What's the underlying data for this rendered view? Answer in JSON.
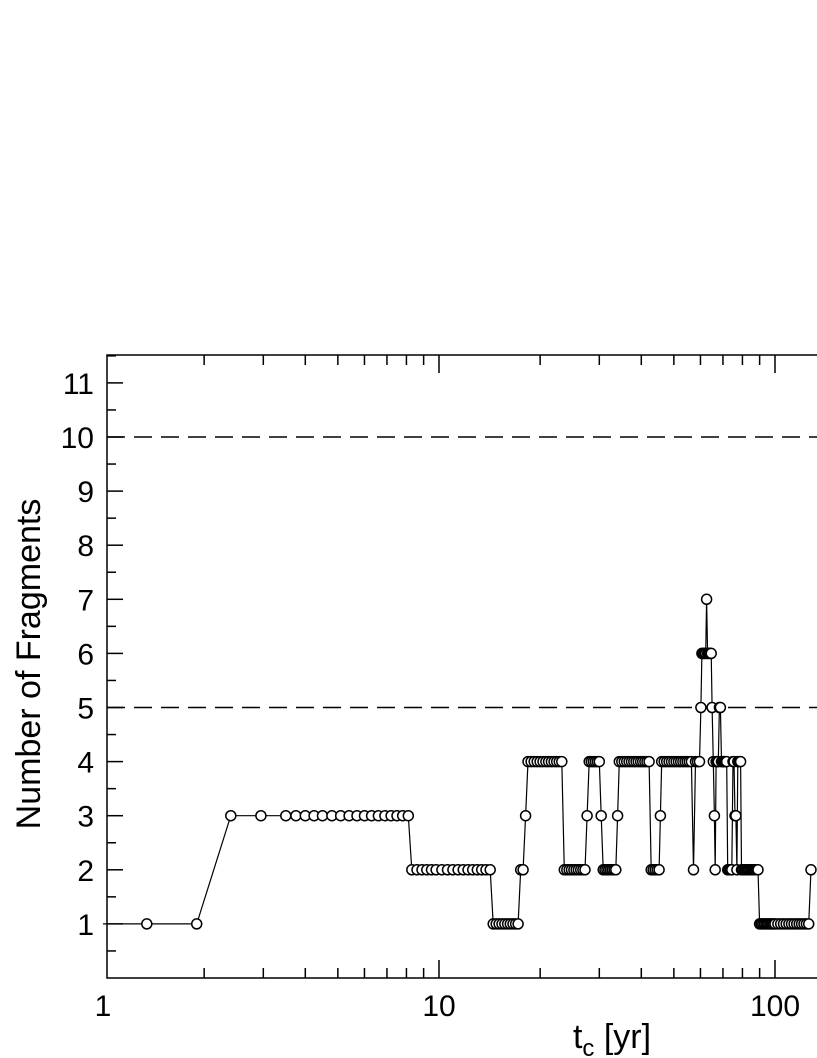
{
  "chart_data": {
    "type": "scatter",
    "title": "",
    "ylabel": "Number of Fragments",
    "xlabel_main": "t",
    "xlabel_sub": "c",
    "xlabel_unit": " [yr]",
    "x_scale": "log",
    "xlim": [
      1,
      130
    ],
    "ylim": [
      0,
      11.5
    ],
    "x_ticks": [
      {
        "value": 1,
        "label": "1"
      },
      {
        "value": 10,
        "label": "10"
      },
      {
        "value": 100,
        "label": "100"
      }
    ],
    "y_ticks": [
      {
        "value": 1,
        "label": "1"
      },
      {
        "value": 2,
        "label": "2"
      },
      {
        "value": 3,
        "label": "3"
      },
      {
        "value": 4,
        "label": "4"
      },
      {
        "value": 5,
        "label": "5"
      },
      {
        "value": 6,
        "label": "6"
      },
      {
        "value": 7,
        "label": "7"
      },
      {
        "value": 8,
        "label": "8"
      },
      {
        "value": 9,
        "label": "9"
      },
      {
        "value": 10,
        "label": "10"
      },
      {
        "value": 11,
        "label": "11"
      }
    ],
    "reference_lines": [
      5,
      10
    ],
    "grid": false,
    "series": [
      {
        "line_start": [
          [
            1.0,
            1
          ]
        ],
        "points": [
          [
            1.35,
            1
          ],
          [
            1.9,
            1
          ],
          [
            2.4,
            3
          ],
          [
            2.95,
            3
          ],
          [
            3.5,
            3
          ],
          [
            3.75,
            3
          ],
          [
            4.0,
            3
          ],
          [
            4.25,
            3
          ],
          [
            4.5,
            3
          ],
          [
            4.8,
            3
          ],
          [
            5.1,
            3
          ],
          [
            5.4,
            3
          ],
          [
            5.7,
            3
          ],
          [
            6.0,
            3
          ],
          [
            6.3,
            3
          ],
          [
            6.6,
            3
          ],
          [
            6.9,
            3
          ],
          [
            7.2,
            3
          ],
          [
            7.5,
            3
          ],
          [
            7.8,
            3
          ],
          [
            8.1,
            3
          ],
          [
            8.3,
            2
          ],
          [
            8.6,
            2
          ],
          [
            8.9,
            2
          ],
          [
            9.2,
            2
          ],
          [
            9.5,
            2
          ],
          [
            9.8,
            2
          ],
          [
            10.2,
            2
          ],
          [
            10.6,
            2
          ],
          [
            11.0,
            2
          ],
          [
            11.4,
            2
          ],
          [
            11.8,
            2
          ],
          [
            12.2,
            2
          ],
          [
            12.6,
            2
          ],
          [
            13.0,
            2
          ],
          [
            13.4,
            2
          ],
          [
            13.8,
            2
          ],
          [
            14.2,
            2
          ],
          [
            14.5,
            1
          ],
          [
            14.8,
            1
          ],
          [
            15.1,
            1
          ],
          [
            15.4,
            1
          ],
          [
            15.7,
            1
          ],
          [
            16.0,
            1
          ],
          [
            16.3,
            1
          ],
          [
            16.6,
            1
          ],
          [
            16.9,
            1
          ],
          [
            17.2,
            1
          ],
          [
            17.5,
            2
          ],
          [
            17.8,
            2
          ],
          [
            18.1,
            3
          ],
          [
            18.4,
            4
          ],
          [
            18.8,
            4
          ],
          [
            19.2,
            4
          ],
          [
            19.6,
            4
          ],
          [
            20.0,
            4
          ],
          [
            20.4,
            4
          ],
          [
            20.8,
            4
          ],
          [
            21.2,
            4
          ],
          [
            21.6,
            4
          ],
          [
            22.0,
            4
          ],
          [
            22.4,
            4
          ],
          [
            22.8,
            4
          ],
          [
            23.2,
            4
          ],
          [
            23.6,
            2
          ],
          [
            24.0,
            2
          ],
          [
            24.4,
            2
          ],
          [
            24.8,
            2
          ],
          [
            25.2,
            2
          ],
          [
            25.6,
            2
          ],
          [
            26.0,
            2
          ],
          [
            26.4,
            2
          ],
          [
            26.8,
            2
          ],
          [
            27.2,
            2
          ],
          [
            27.6,
            3
          ],
          [
            28.0,
            4
          ],
          [
            28.4,
            4
          ],
          [
            28.8,
            4
          ],
          [
            29.2,
            4
          ],
          [
            29.6,
            4
          ],
          [
            30.0,
            4
          ],
          [
            30.4,
            3
          ],
          [
            30.8,
            2
          ],
          [
            31.2,
            2
          ],
          [
            31.6,
            2
          ],
          [
            32.0,
            2
          ],
          [
            32.4,
            2
          ],
          [
            32.8,
            2
          ],
          [
            33.2,
            2
          ],
          [
            33.6,
            2
          ],
          [
            34.0,
            3
          ],
          [
            34.4,
            4
          ],
          [
            35.0,
            4
          ],
          [
            35.6,
            4
          ],
          [
            36.2,
            4
          ],
          [
            36.8,
            4
          ],
          [
            37.4,
            4
          ],
          [
            38.0,
            4
          ],
          [
            38.6,
            4
          ],
          [
            39.2,
            4
          ],
          [
            39.8,
            4
          ],
          [
            40.4,
            4
          ],
          [
            41.0,
            4
          ],
          [
            41.6,
            4
          ],
          [
            42.2,
            4
          ],
          [
            42.8,
            2
          ],
          [
            43.4,
            2
          ],
          [
            44.0,
            2
          ],
          [
            44.6,
            2
          ],
          [
            45.2,
            2
          ],
          [
            45.6,
            3
          ],
          [
            46.0,
            4
          ],
          [
            46.8,
            4
          ],
          [
            47.6,
            4
          ],
          [
            48.4,
            4
          ],
          [
            49.2,
            4
          ],
          [
            50.0,
            4
          ],
          [
            50.8,
            4
          ],
          [
            51.6,
            4
          ],
          [
            52.4,
            4
          ],
          [
            53.2,
            4
          ],
          [
            54.0,
            4
          ],
          [
            54.8,
            4
          ],
          [
            55.6,
            4
          ],
          [
            56.4,
            4
          ],
          [
            57.2,
            2
          ],
          [
            58.0,
            4
          ],
          [
            58.8,
            4
          ],
          [
            59.6,
            4
          ],
          [
            60.2,
            5
          ],
          [
            60.6,
            6
          ],
          [
            61.0,
            6
          ],
          [
            61.4,
            6
          ],
          [
            61.8,
            6
          ],
          [
            62.2,
            6
          ],
          [
            62.6,
            7
          ],
          [
            63.0,
            6
          ],
          [
            63.4,
            6
          ],
          [
            63.8,
            6
          ],
          [
            64.2,
            6
          ],
          [
            64.6,
            6
          ],
          [
            65.0,
            5
          ],
          [
            65.5,
            4
          ],
          [
            66.0,
            3
          ],
          [
            66.4,
            2
          ],
          [
            66.8,
            4
          ],
          [
            67.3,
            4
          ],
          [
            67.8,
            4
          ],
          [
            68.3,
            5
          ],
          [
            68.8,
            5
          ],
          [
            69.3,
            4
          ],
          [
            69.8,
            4
          ],
          [
            70.3,
            4
          ],
          [
            70.8,
            4
          ],
          [
            71.3,
            4
          ],
          [
            71.8,
            4
          ],
          [
            72.3,
            2
          ],
          [
            73.0,
            2
          ],
          [
            73.7,
            2
          ],
          [
            74.4,
            2
          ],
          [
            75.0,
            4
          ],
          [
            75.5,
            4
          ],
          [
            76.0,
            3
          ],
          [
            76.5,
            3
          ],
          [
            77.0,
            2
          ],
          [
            77.5,
            4
          ],
          [
            78.0,
            4
          ],
          [
            78.5,
            4
          ],
          [
            79.0,
            4
          ],
          [
            79.5,
            2
          ],
          [
            80.2,
            2
          ],
          [
            81.0,
            2
          ],
          [
            81.8,
            2
          ],
          [
            82.6,
            2
          ],
          [
            83.4,
            2
          ],
          [
            84.2,
            2
          ],
          [
            85.0,
            2
          ],
          [
            85.8,
            2
          ],
          [
            86.6,
            2
          ],
          [
            87.4,
            2
          ],
          [
            88.2,
            2
          ],
          [
            89.0,
            2
          ],
          [
            90.0,
            1
          ],
          [
            91.0,
            1
          ],
          [
            92.0,
            1
          ],
          [
            93.0,
            1
          ],
          [
            94.0,
            1
          ],
          [
            95.0,
            1
          ],
          [
            96.0,
            1
          ],
          [
            97.0,
            1
          ],
          [
            98.0,
            1
          ],
          [
            99.0,
            1
          ],
          [
            100.0,
            1
          ],
          [
            102.0,
            1
          ],
          [
            104.0,
            1
          ],
          [
            106.0,
            1
          ],
          [
            108.0,
            1
          ],
          [
            110.0,
            1
          ],
          [
            112.0,
            1
          ],
          [
            114.0,
            1
          ],
          [
            116.0,
            1
          ],
          [
            118.0,
            1
          ],
          [
            120.0,
            1
          ],
          [
            122.0,
            1
          ],
          [
            124.0,
            1
          ],
          [
            126.0,
            1
          ],
          [
            128.0,
            2
          ]
        ]
      }
    ]
  }
}
